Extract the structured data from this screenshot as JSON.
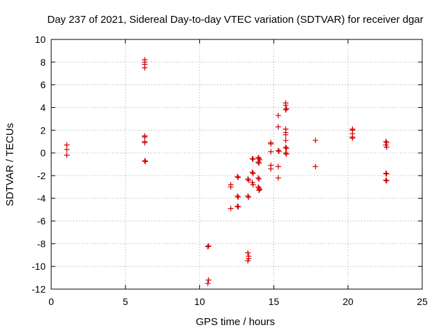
{
  "chart_data": {
    "type": "scatter",
    "title": "Day 237 of 2021, Sidereal Day-to-day VTEC variation (SDTVAR) for receiver dgar",
    "xlabel": "GPS time / hours",
    "ylabel": "SDTVAR / TECUs",
    "xlim": [
      0,
      25
    ],
    "ylim": [
      -12,
      10
    ],
    "xticks": [
      0,
      5,
      10,
      15,
      20,
      25
    ],
    "yticks": [
      -12,
      -10,
      -8,
      -6,
      -4,
      -2,
      0,
      2,
      4,
      6,
      8,
      10
    ],
    "grid": true,
    "marker": "+",
    "marker_color": "#cc0000",
    "series": [
      {
        "name": "SDTVAR",
        "points": [
          [
            1.05,
            0.7
          ],
          [
            1.05,
            0.3
          ],
          [
            1.05,
            -0.2
          ],
          [
            6.3,
            8.2
          ],
          [
            6.3,
            8.0
          ],
          [
            6.3,
            7.8
          ],
          [
            6.3,
            7.5
          ],
          [
            6.3,
            1.5
          ],
          [
            6.3,
            1.4
          ],
          [
            6.3,
            0.9
          ],
          [
            6.3,
            1.0
          ],
          [
            6.3,
            -0.7
          ],
          [
            6.35,
            -0.75
          ],
          [
            10.6,
            -8.2
          ],
          [
            10.55,
            -8.25
          ],
          [
            10.6,
            -11.2
          ],
          [
            10.55,
            -11.5
          ],
          [
            12.1,
            -2.8
          ],
          [
            12.1,
            -3.0
          ],
          [
            12.1,
            -4.9
          ],
          [
            12.55,
            -2.1
          ],
          [
            12.6,
            -2.15
          ],
          [
            12.55,
            -3.8
          ],
          [
            12.6,
            -3.9
          ],
          [
            12.55,
            -4.7
          ],
          [
            12.6,
            -4.75
          ],
          [
            13.25,
            -2.3
          ],
          [
            13.3,
            -2.4
          ],
          [
            13.25,
            -3.8
          ],
          [
            13.3,
            -3.9
          ],
          [
            13.25,
            -8.8
          ],
          [
            13.3,
            -9.1
          ],
          [
            13.3,
            -9.3
          ],
          [
            13.25,
            -9.5
          ],
          [
            13.55,
            -0.5
          ],
          [
            13.6,
            -0.55
          ],
          [
            13.55,
            -1.7
          ],
          [
            13.6,
            -1.8
          ],
          [
            13.55,
            -2.6
          ],
          [
            13.6,
            -2.8
          ],
          [
            13.95,
            -0.4
          ],
          [
            14.0,
            -0.5
          ],
          [
            14.05,
            -0.6
          ],
          [
            13.95,
            -0.8
          ],
          [
            14.0,
            -0.9
          ],
          [
            13.95,
            -2.2
          ],
          [
            14.0,
            -2.3
          ],
          [
            13.95,
            -3.0
          ],
          [
            14.0,
            -3.1
          ],
          [
            14.05,
            -3.2
          ],
          [
            14.0,
            -3.3
          ],
          [
            14.8,
            0.9
          ],
          [
            14.8,
            0.8
          ],
          [
            14.8,
            0.1
          ],
          [
            14.8,
            -1.1
          ],
          [
            14.8,
            -1.4
          ],
          [
            15.3,
            3.3
          ],
          [
            15.3,
            2.3
          ],
          [
            15.3,
            0.2
          ],
          [
            15.35,
            0.15
          ],
          [
            15.3,
            -1.2
          ],
          [
            15.3,
            -2.2
          ],
          [
            15.8,
            4.4
          ],
          [
            15.8,
            4.2
          ],
          [
            15.85,
            3.9
          ],
          [
            15.8,
            3.8
          ],
          [
            15.8,
            2.1
          ],
          [
            15.8,
            1.8
          ],
          [
            15.8,
            1.6
          ],
          [
            15.8,
            1.1
          ],
          [
            15.8,
            0.5
          ],
          [
            15.85,
            0.4
          ],
          [
            15.8,
            0.0
          ],
          [
            15.85,
            -0.1
          ],
          [
            17.8,
            1.1
          ],
          [
            17.8,
            -1.2
          ],
          [
            20.3,
            2.1
          ],
          [
            20.3,
            2.0
          ],
          [
            20.3,
            1.7
          ],
          [
            20.3,
            1.4
          ],
          [
            20.3,
            1.3
          ],
          [
            22.55,
            1.0
          ],
          [
            22.6,
            0.9
          ],
          [
            22.55,
            0.7
          ],
          [
            22.6,
            0.5
          ],
          [
            22.55,
            -1.8
          ],
          [
            22.6,
            -1.85
          ],
          [
            22.55,
            -2.4
          ],
          [
            22.6,
            -2.45
          ]
        ]
      }
    ]
  }
}
